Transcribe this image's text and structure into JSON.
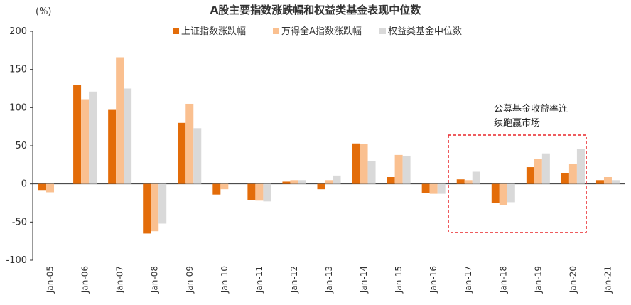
{
  "chart_data": {
    "type": "bar",
    "title": "A股主要指数涨跌幅和权益类基金表现中位数",
    "ylabel": "(%)",
    "xlabel": "",
    "ylim": [
      -100,
      200
    ],
    "yticks": [
      200,
      150,
      100,
      50,
      0,
      -50,
      -100
    ],
    "categories": [
      "Jan-05",
      "Jan-06",
      "Jan-07",
      "Jan-08",
      "Jan-09",
      "Jan-10",
      "Jan-11",
      "Jan-12",
      "Jan-13",
      "Jan-14",
      "Jan-15",
      "Jan-16",
      "Jan-17",
      "Jan-18",
      "Jan-19",
      "Jan-20",
      "Jan-21"
    ],
    "series": [
      {
        "name": "上证指数涨跌幅",
        "color": "#E36C09",
        "values": [
          -8,
          130,
          97,
          -65,
          80,
          -14,
          -21,
          3,
          -7,
          53,
          9,
          -12,
          6,
          -25,
          22,
          14,
          5
        ]
      },
      {
        "name": "万得全A指数涨跌幅",
        "color": "#FAC090",
        "values": [
          -11,
          111,
          166,
          -62,
          105,
          -7,
          -22,
          5,
          5,
          52,
          38,
          -13,
          5,
          -28,
          33,
          26,
          9
        ]
      },
      {
        "name": "权益类基金中位数",
        "color": "#D9D9D9",
        "values": [
          null,
          121,
          125,
          -52,
          73,
          null,
          -23,
          5,
          11,
          30,
          37,
          -13,
          16,
          -24,
          40,
          46,
          5
        ]
      }
    ],
    "grid": false,
    "legend_position": "top",
    "annotation": {
      "lines": [
        "公募基金收益率连",
        "续跑赢市场"
      ],
      "box_color": "#E8262A"
    }
  }
}
